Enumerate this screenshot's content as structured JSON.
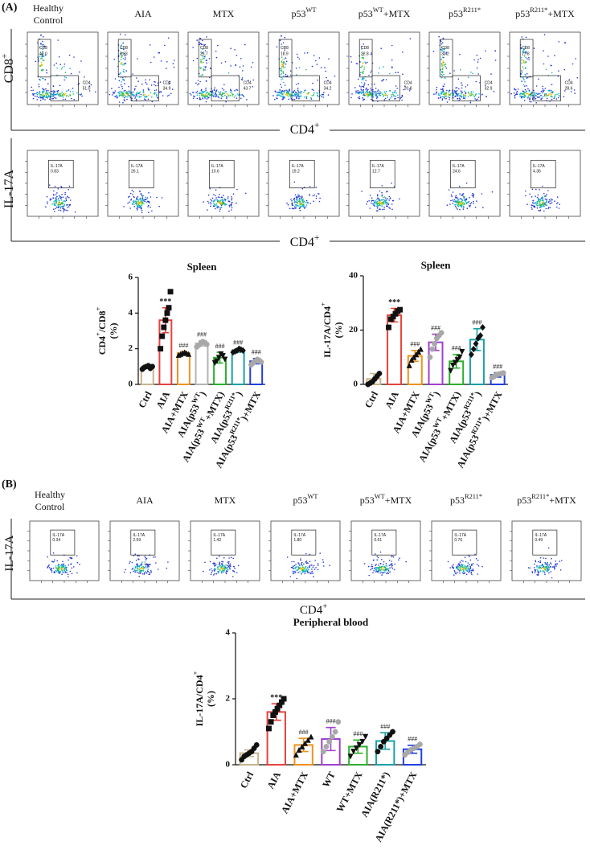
{
  "figure": {
    "panel_labels": [
      "(A)",
      "(B)"
    ],
    "gate_labels": {
      "cd8": "CD8",
      "cd4": "CD4",
      "il17a": "IL-17A"
    },
    "panel_a": {
      "headers": [
        [
          [
            "Healthy"
          ],
          [
            "Control"
          ]
        ],
        [
          [
            "AIA"
          ]
        ],
        [
          [
            "MTX"
          ]
        ],
        [
          [
            "p53",
            {
              "sup": "WT"
            }
          ]
        ],
        [
          [
            "p53",
            {
              "sup": "WT"
            },
            "+MTX"
          ]
        ],
        [
          [
            "p53",
            {
              "sup": "R211*"
            }
          ]
        ],
        [
          [
            "p53",
            {
              "sup": "R211*"
            },
            "+MTX"
          ]
        ]
      ],
      "row1": {
        "y_label": [
          "CD8",
          {
            "sup": "+"
          }
        ],
        "x_label": [
          "CD4",
          {
            "sup": "+"
          }
        ],
        "plots": [
          {
            "cd8": "42.0",
            "cd4": "51.0"
          },
          {
            "cd8": "8.83",
            "cd4": "34.9"
          },
          {
            "cd8": "26.7",
            "cd4": "43.7"
          },
          {
            "cd8": "18.9",
            "cd4": "34.2"
          },
          {
            "cd8": "22.8",
            "cd4": "20.8"
          },
          {
            "cd8": "30.2",
            "cd4": "32.9"
          },
          {
            "cd8": "27.8",
            "cd4": "28.6"
          }
        ]
      },
      "row2": {
        "y_label": [
          "IL-17A"
        ],
        "x_label": [
          "CD4",
          {
            "sup": "+"
          }
        ],
        "plots": [
          "0.83",
          "26.1",
          "10.6",
          "19.2",
          "12.7",
          "24.6",
          "4.36"
        ]
      }
    },
    "panel_b": {
      "headers": [
        [
          [
            "Healthy"
          ],
          [
            "Control"
          ]
        ],
        [
          [
            "AIA"
          ]
        ],
        [
          [
            "MTX"
          ]
        ],
        [
          [
            "p53",
            {
              "sup": "WT"
            }
          ]
        ],
        [
          [
            "p53",
            {
              "sup": "WT"
            },
            "+MTX"
          ]
        ],
        [
          [
            "p53",
            {
              "sup": "R211*"
            }
          ]
        ],
        [
          [
            "p53",
            {
              "sup": "R211*"
            },
            "+MTX"
          ]
        ]
      ],
      "y_label": [
        "IL-17A"
      ],
      "x_label": [
        "CD4",
        {
          "sup": "+"
        }
      ],
      "plots": [
        "0.34",
        "2.59",
        "1.42",
        "1.80",
        "0.61",
        "0.76",
        "0.49"
      ]
    }
  },
  "chart_data": [
    {
      "type": "bar",
      "title": "Spleen",
      "y_label": [
        [
          "CD4",
          {
            "sup": "+"
          },
          "/CD8",
          {
            "sup": "+"
          }
        ],
        [
          "(%)"
        ]
      ],
      "categories": [
        [
          "Ctrl"
        ],
        [
          "AIA"
        ],
        [
          "AIA+MTX"
        ],
        [
          "AIA(p53",
          {
            "sup": "WT"
          },
          ")"
        ],
        [
          "AIA(p53",
          {
            "sup": "WT"
          },
          "+MTX)"
        ],
        [
          "AIA(p53",
          {
            "sup": "R211*"
          },
          ")"
        ],
        [
          "AIA(p53",
          {
            "sup": "R211*"
          },
          ")+MTX"
        ]
      ],
      "values": [
        1.0,
        3.6,
        1.75,
        2.3,
        1.5,
        1.9,
        1.3
      ],
      "errors": [
        0.1,
        0.7,
        0.1,
        0.15,
        0.3,
        0.1,
        0.15
      ],
      "colors": [
        "#c8b48a",
        "#e8413c",
        "#f0921e",
        "#b4b4b4",
        "#2bb02b",
        "#1aa0a8",
        "#2040e0"
      ],
      "markers": [
        "circle",
        "square",
        "triangle",
        "circle",
        "triangle-down",
        "diamond",
        "circle"
      ],
      "point_colors": [
        "#111111",
        "#111111",
        "#111111",
        "#a8a8a8",
        "#111111",
        "#111111",
        "#a8a8a8"
      ],
      "points": [
        [
          0.85,
          0.95,
          1.0,
          1.05,
          0.9,
          1.0
        ],
        [
          2.0,
          2.7,
          3.2,
          3.6,
          4.0,
          4.3,
          5.2
        ],
        [
          1.65,
          1.7,
          1.75,
          1.8,
          1.75,
          1.7
        ],
        [
          2.1,
          2.2,
          2.3,
          2.4,
          2.35,
          2.25
        ],
        [
          1.2,
          1.3,
          1.5,
          1.7,
          1.6,
          1.4
        ],
        [
          1.8,
          1.85,
          1.9,
          2.0,
          1.95,
          1.9
        ],
        [
          1.1,
          1.2,
          1.3,
          1.4,
          1.35,
          1.25
        ]
      ],
      "annotations": [
        null,
        "***",
        "###",
        "###",
        "###",
        "###",
        "###"
      ],
      "ylim": [
        0,
        6
      ],
      "yticks": [
        0,
        2,
        4,
        6
      ]
    },
    {
      "type": "bar",
      "title": "Spleen",
      "y_label": [
        [
          "IL-17A/CD4",
          {
            "sup": "+"
          }
        ],
        [
          "(%)"
        ]
      ],
      "categories": [
        [
          "Ctrl"
        ],
        [
          "AIA"
        ],
        [
          "AIA+MTX"
        ],
        [
          "AIA(p53",
          {
            "sup": "WT"
          },
          ")"
        ],
        [
          "AIA(p53",
          {
            "sup": "WT"
          },
          "+MTX)"
        ],
        [
          "AIA(p53",
          {
            "sup": "R211*"
          },
          ")"
        ],
        [
          "AIA(p53",
          {
            "sup": "R211*"
          },
          ")+MTX"
        ]
      ],
      "values": [
        2,
        25.5,
        10.5,
        15.5,
        8.5,
        16.5,
        3.5
      ],
      "errors": [
        2,
        2.5,
        2,
        3,
        2.5,
        4,
        0.8
      ],
      "colors": [
        "#c8b48a",
        "#e8413c",
        "#f0921e",
        "#a040d0",
        "#2bb02b",
        "#1aa0a8",
        "#2040e0"
      ],
      "markers": [
        "circle",
        "square",
        "triangle",
        "circle",
        "triangle-down",
        "diamond",
        "circle"
      ],
      "point_colors": [
        "#111111",
        "#111111",
        "#111111",
        "#a8a8a8",
        "#111111",
        "#111111",
        "#a8a8a8"
      ],
      "points": [
        [
          0,
          0.5,
          1,
          2,
          3,
          4
        ],
        [
          21,
          24,
          25,
          26,
          27,
          27.5
        ],
        [
          7,
          9,
          10,
          11,
          12,
          13
        ],
        [
          10,
          13,
          15,
          17,
          18,
          19
        ],
        [
          5,
          7,
          8,
          9,
          10,
          12
        ],
        [
          11,
          13,
          15,
          17,
          18,
          21
        ],
        [
          2.5,
          3,
          3.5,
          3.8,
          4,
          4.2
        ]
      ],
      "annotations": [
        null,
        "***",
        "###",
        "###",
        "###",
        "###",
        "###"
      ],
      "ylim": [
        0,
        40
      ],
      "yticks": [
        0,
        20,
        40
      ]
    },
    {
      "type": "bar",
      "title": "Peripheral blood",
      "y_label": [
        [
          "IL-17A/CD4",
          {
            "sup": "+"
          }
        ],
        [
          "(%)"
        ]
      ],
      "categories": [
        [
          "Ctrl"
        ],
        [
          "AIA"
        ],
        [
          "AIA+MTX"
        ],
        [
          "WT"
        ],
        [
          "WT+MTX"
        ],
        [
          "AIA(R211*)"
        ],
        [
          "AIA(R211*)+MTX"
        ]
      ],
      "values": [
        0.35,
        1.6,
        0.6,
        0.78,
        0.55,
        0.72,
        0.47
      ],
      "errors": [
        0.1,
        0.25,
        0.2,
        0.35,
        0.2,
        0.25,
        0.12
      ],
      "colors": [
        "#c8b48a",
        "#e8413c",
        "#f0921e",
        "#a040d0",
        "#2bb02b",
        "#1aa0a8",
        "#2040e0"
      ],
      "markers": [
        "circle",
        "square",
        "triangle",
        "circle",
        "triangle-down",
        "circle",
        "circle"
      ],
      "point_colors": [
        "#111111",
        "#111111",
        "#111111",
        "#a8a8a8",
        "#111111",
        "#111111",
        "#a8a8a8"
      ],
      "points": [
        [
          0.15,
          0.25,
          0.3,
          0.35,
          0.4,
          0.5,
          0.6
        ],
        [
          1.1,
          1.3,
          1.5,
          1.6,
          1.7,
          1.8,
          1.9,
          2.0
        ],
        [
          0.3,
          0.45,
          0.55,
          0.65,
          0.75,
          0.85
        ],
        [
          0.4,
          0.55,
          0.7,
          0.85,
          1.0,
          1.3
        ],
        [
          0.25,
          0.4,
          0.5,
          0.6,
          0.7,
          0.85
        ],
        [
          0.4,
          0.55,
          0.7,
          0.8,
          0.9,
          1.0
        ],
        [
          0.3,
          0.38,
          0.45,
          0.5,
          0.55,
          0.62
        ]
      ],
      "annotations": [
        null,
        "***",
        "###",
        "###",
        "###",
        "###",
        "###"
      ],
      "ylim": [
        0,
        4
      ],
      "yticks": [
        0,
        2,
        4
      ]
    }
  ]
}
